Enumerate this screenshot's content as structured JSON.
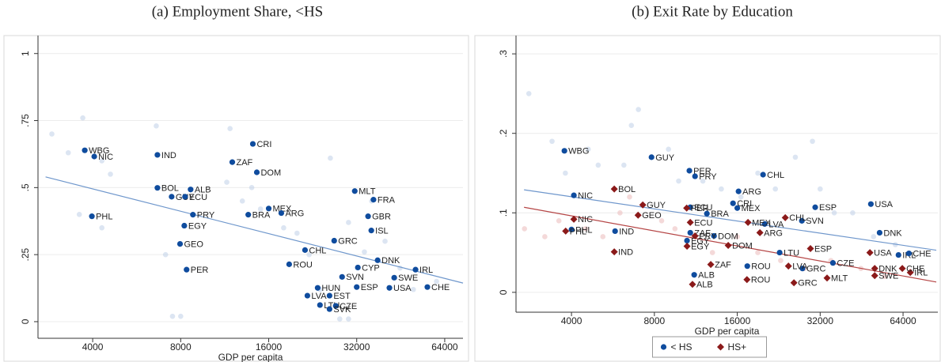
{
  "chart_data": [
    {
      "type": "scatter",
      "title": "(a) Employment Share, <HS",
      "x_label": "GDP per capita",
      "xscale": "log",
      "xlim": [
        2600,
        73900
      ],
      "xticks": [
        4000,
        8000,
        16000,
        32000,
        64000
      ],
      "ylim": [
        -0.062,
        1.067
      ],
      "yticks": [
        0,
        {
          "value": 0.25,
          "label": ".25"
        },
        {
          "value": 0.5,
          "label": ".5"
        },
        {
          "value": 0.75,
          "label": ".75"
        },
        1
      ],
      "grid": true,
      "background": [
        {
          "color": "#b9cbe6",
          "x": [
            2900,
            3300,
            3700,
            4300,
            4600,
            3600,
            4300,
            6600,
            7100,
            7500,
            8000,
            11800,
            11500,
            13000,
            14000,
            15000,
            18000,
            20000,
            22000,
            26000,
            30000,
            36000,
            40000,
            45000,
            60000,
            28000,
            30000,
            24000,
            50000,
            34000
          ],
          "values": [
            0.7,
            0.63,
            0.76,
            0.6,
            0.55,
            0.4,
            0.35,
            0.73,
            0.25,
            0.02,
            0.02,
            0.72,
            0.52,
            0.45,
            0.5,
            0.42,
            0.35,
            0.33,
            0.25,
            0.61,
            0.37,
            0.45,
            0.3,
            0.2,
            0.15,
            0.01,
            0.01,
            0.12,
            0.12,
            0.26
          ]
        }
      ],
      "fits": [
        {
          "color": "#6f97cc",
          "x": [
            2760,
            73900
          ],
          "values": [
            0.54,
            0.144
          ]
        }
      ],
      "series": [
        {
          "color": "#0f4c9e",
          "marker": "circle",
          "labels": [
            "WBG",
            "NIC",
            "IND",
            "PHL",
            "CRI",
            "ZAF",
            "DOM",
            "BOL",
            "GUY",
            "ALB",
            "ECU",
            "MEX",
            "ARG",
            "BRA",
            "PRY",
            "EGY",
            "MLT",
            "FRA",
            "GBR",
            "ISL",
            "GEO",
            "GRC",
            "CHL",
            "ROU",
            "PER",
            "DNK",
            "IRL",
            "CYP",
            "SVN",
            "SWE",
            "CHE",
            "ESP",
            "USA",
            "HUN",
            "EST",
            "LVA",
            "LTU",
            "CZE",
            "SVK"
          ],
          "x": [
            3758,
            4050,
            6660,
            3975,
            14120,
            12010,
            14570,
            6660,
            7450,
            8650,
            8280,
            16000,
            17670,
            13620,
            8810,
            8230,
            31510,
            36520,
            35000,
            35900,
            7960,
            26800,
            21300,
            18800,
            8380,
            37730,
            50860,
            32290,
            28520,
            43000,
            55830,
            32000,
            41400,
            23530,
            25830,
            21700,
            23960,
            27130,
            25830
          ],
          "values": [
            0.639,
            0.616,
            0.622,
            0.393,
            0.663,
            0.595,
            0.557,
            0.499,
            0.466,
            0.493,
            0.466,
            0.422,
            0.405,
            0.399,
            0.399,
            0.358,
            0.487,
            0.455,
            0.393,
            0.34,
            0.29,
            0.302,
            0.267,
            0.214,
            0.194,
            0.229,
            0.194,
            0.202,
            0.167,
            0.164,
            0.129,
            0.129,
            0.126,
            0.126,
            0.097,
            0.097,
            0.062,
            0.059,
            0.047
          ]
        }
      ]
    },
    {
      "type": "scatter",
      "title": "(b) Exit Rate by Education",
      "x_label": "GDP per capita",
      "xscale": "log",
      "xlim": [
        2515,
        85600
      ],
      "xticks": [
        4000,
        8000,
        16000,
        32000,
        64000
      ],
      "ylim": [
        -0.025,
        0.323
      ],
      "yticks": [
        0,
        {
          "value": 0.1,
          "label": ".1"
        },
        {
          "value": 0.2,
          "label": ".2"
        },
        {
          "value": 0.3,
          "label": ".3"
        }
      ],
      "grid": true,
      "legend": "bottom",
      "background": [
        {
          "color": "#b9cbe6",
          "x": [
            2800,
            3400,
            3800,
            4600,
            5000,
            6200,
            6600,
            7000,
            9000,
            9800,
            12000,
            14000,
            16500,
            19000,
            22000,
            26000,
            30000,
            32000,
            36000,
            42000,
            50000,
            60000
          ],
          "values": [
            0.25,
            0.19,
            0.15,
            0.18,
            0.16,
            0.16,
            0.21,
            0.23,
            0.18,
            0.14,
            0.14,
            0.13,
            0.12,
            0.15,
            0.13,
            0.17,
            0.19,
            0.13,
            0.1,
            0.1,
            0.07,
            0.06
          ]
        },
        {
          "color": "#eab4b4",
          "x": [
            2700,
            3200,
            3600,
            4500,
            5200,
            6000,
            6500,
            8500,
            9500,
            11000,
            13000,
            16000,
            19000,
            23000,
            28000,
            35000,
            45000,
            55000
          ],
          "values": [
            0.08,
            0.07,
            0.09,
            0.08,
            0.07,
            0.1,
            0.12,
            0.09,
            0.08,
            0.07,
            0.05,
            0.07,
            0.05,
            0.04,
            0.03,
            0.04,
            0.03,
            0.02
          ]
        }
      ],
      "fits": [
        {
          "color": "#6f97cc",
          "x": [
            2690,
            84500
          ],
          "values": [
            0.129,
            0.053
          ]
        },
        {
          "color": "#b54545",
          "x": [
            2690,
            84500
          ],
          "values": [
            0.107,
            0.013
          ]
        }
      ],
      "series": [
        {
          "name": "< HS",
          "color": "#0f4c9e",
          "marker": "circle",
          "labels": [
            "WBG",
            "NIC",
            "GUY",
            "PER",
            "PRY",
            "CHL",
            "ARG",
            "ECU",
            "CRI",
            "MEX",
            "BRA",
            "ESP",
            "USA",
            "SVN",
            "LVA",
            "ZAF",
            "DOM",
            "EGY",
            "DNK",
            "IND",
            "PHL",
            "LTU",
            "IRL",
            "CHE",
            "ROU",
            "ALB",
            "GRC",
            "CZE"
          ],
          "x": [
            3770,
            4080,
            7810,
            10720,
            11240,
            19850,
            16170,
            10800,
            15440,
            16000,
            12410,
            30700,
            48900,
            27460,
            20120,
            10800,
            13170,
            10510,
            52600,
            5760,
            4000,
            22800,
            61600,
            67200,
            17400,
            11160,
            27600,
            35600
          ],
          "values": [
            0.178,
            0.122,
            0.17,
            0.153,
            0.146,
            0.148,
            0.127,
            0.107,
            0.112,
            0.106,
            0.099,
            0.107,
            0.111,
            0.09,
            0.086,
            0.075,
            0.071,
            0.065,
            0.075,
            0.077,
            0.079,
            0.05,
            0.047,
            0.049,
            0.033,
            0.022,
            0.03,
            0.037
          ]
        },
        {
          "name": "HS+",
          "color": "#8b1a1a",
          "marker": "diamond",
          "labels": [
            "BOL",
            "GUY",
            "GEO",
            "PER",
            "ECU",
            "MEX",
            "CHL",
            "NIC",
            "PHL",
            "PRY",
            "ARG",
            "EGY",
            "DOM",
            "IND",
            "ZAF",
            "ALB",
            "ESP",
            "ROU",
            "LVA",
            "MLT",
            "GRC",
            "SWE",
            "IRL",
            "CHE",
            "DNK",
            "USA"
          ],
          "x": [
            5720,
            7260,
            6980,
            10480,
            10800,
            17500,
            23900,
            4080,
            3810,
            11240,
            19330,
            10510,
            14830,
            5720,
            12820,
            11000,
            29500,
            17350,
            24540,
            33900,
            25700,
            50500,
            68000,
            63600,
            50500,
            48500
          ],
          "values": [
            0.13,
            0.11,
            0.097,
            0.106,
            0.088,
            0.088,
            0.094,
            0.092,
            0.077,
            0.071,
            0.075,
            0.058,
            0.059,
            0.051,
            0.035,
            0.01,
            0.055,
            0.016,
            0.033,
            0.018,
            0.012,
            0.021,
            0.025,
            0.03,
            0.03,
            0.05
          ]
        }
      ]
    }
  ]
}
